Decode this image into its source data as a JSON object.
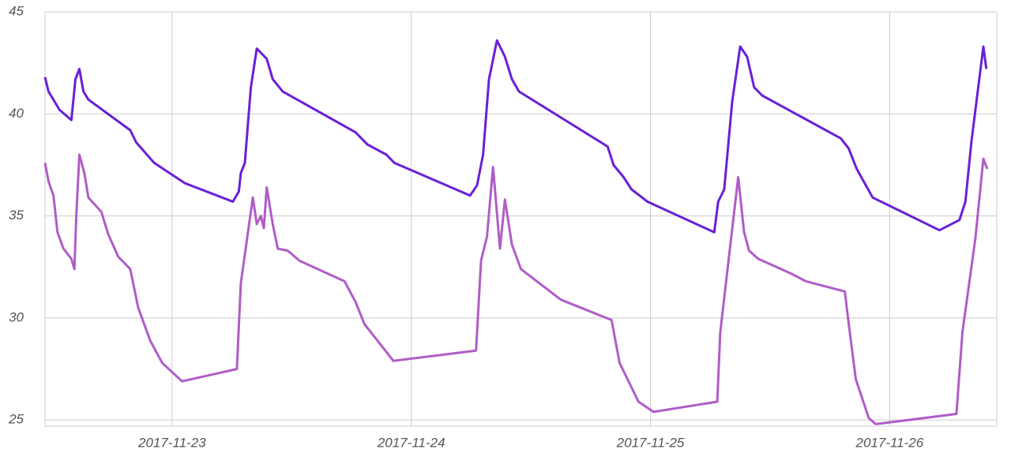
{
  "chart_data": {
    "type": "line",
    "xlim": [
      "2017-11-22 11:15",
      "2017-11-26 10:45"
    ],
    "xticks": [
      "2017-11-23",
      "2017-11-24",
      "2017-11-25",
      "2017-11-26"
    ],
    "ylim": [
      24.7,
      45
    ],
    "yticks": [
      25,
      30,
      35,
      40,
      45
    ],
    "grid": true,
    "series": [
      {
        "color": "#6a1fd8",
        "x": [
          "2017-11-22 11:15",
          "2017-11-22 11:36",
          "2017-11-22 12:42",
          "2017-11-22 13:54",
          "2017-11-22 14:18",
          "2017-11-22 14:42",
          "2017-11-22 15:06",
          "2017-11-22 15:36",
          "2017-11-22 19:48",
          "2017-11-22 20:24",
          "2017-11-22 22:12",
          "2017-11-23 01:18",
          "2017-11-23 06:06",
          "2017-11-23 06:42",
          "2017-11-23 06:54",
          "2017-11-23 07:18",
          "2017-11-23 07:54",
          "2017-11-23 08:30",
          "2017-11-23 09:30",
          "2017-11-23 10:06",
          "2017-11-23 11:06",
          "2017-11-23 18:24",
          "2017-11-23 19:36",
          "2017-11-23 21:30",
          "2017-11-23 22:18",
          "2017-11-24 05:54",
          "2017-11-24 06:36",
          "2017-11-24 07:12",
          "2017-11-24 07:48",
          "2017-11-24 08:36",
          "2017-11-24 09:24",
          "2017-11-24 10:06",
          "2017-11-24 10:48",
          "2017-11-24 19:42",
          "2017-11-24 20:18",
          "2017-11-24 21:18",
          "2017-11-24 22:06",
          "2017-11-24 23:42",
          "2017-11-25 06:24",
          "2017-11-25 06:48",
          "2017-11-25 07:24",
          "2017-11-25 08:12",
          "2017-11-25 09:00",
          "2017-11-25 09:42",
          "2017-11-25 10:24",
          "2017-11-25 11:12",
          "2017-11-25 19:06",
          "2017-11-25 19:54",
          "2017-11-25 20:42",
          "2017-11-25 22:18",
          "2017-11-26 05:00",
          "2017-11-26 07:00",
          "2017-11-26 07:36",
          "2017-11-26 08:12",
          "2017-11-26 09:24",
          "2017-11-26 09:42"
        ],
        "values": [
          41.8,
          41.1,
          40.2,
          39.7,
          41.7,
          42.2,
          41.1,
          40.7,
          39.2,
          38.6,
          37.6,
          36.6,
          35.7,
          36.2,
          37.1,
          37.6,
          41.3,
          43.2,
          42.7,
          41.7,
          41.1,
          39.1,
          38.5,
          38.0,
          37.6,
          36.0,
          36.5,
          38.0,
          41.7,
          43.6,
          42.8,
          41.7,
          41.1,
          38.4,
          37.5,
          36.9,
          36.3,
          35.7,
          34.2,
          35.7,
          36.3,
          40.6,
          43.3,
          42.8,
          41.3,
          40.9,
          38.8,
          38.3,
          37.3,
          35.9,
          34.3,
          34.8,
          35.7,
          38.6,
          43.3,
          42.2
        ]
      },
      {
        "color": "#b05cc8",
        "x": [
          "2017-11-22 11:15",
          "2017-11-22 11:36",
          "2017-11-22 12:06",
          "2017-11-22 12:30",
          "2017-11-22 13:06",
          "2017-11-22 13:54",
          "2017-11-22 14:12",
          "2017-11-22 14:24",
          "2017-11-22 14:42",
          "2017-11-22 15:12",
          "2017-11-22 15:36",
          "2017-11-22 16:54",
          "2017-11-22 17:36",
          "2017-11-22 18:36",
          "2017-11-22 19:48",
          "2017-11-22 20:36",
          "2017-11-22 21:48",
          "2017-11-22 23:00",
          "2017-11-23 01:00",
          "2017-11-23 06:30",
          "2017-11-23 06:54",
          "2017-11-23 08:06",
          "2017-11-23 08:30",
          "2017-11-23 08:54",
          "2017-11-23 09:12",
          "2017-11-23 09:30",
          "2017-11-23 10:06",
          "2017-11-23 10:36",
          "2017-11-23 11:36",
          "2017-11-23 12:48",
          "2017-11-23 17:18",
          "2017-11-23 18:24",
          "2017-11-23 19:18",
          "2017-11-23 20:36",
          "2017-11-23 22:12",
          "2017-11-24 06:30",
          "2017-11-24 07:00",
          "2017-11-24 07:36",
          "2017-11-24 08:12",
          "2017-11-24 08:54",
          "2017-11-24 09:24",
          "2017-11-24 10:06",
          "2017-11-24 11:00",
          "2017-11-24 15:00",
          "2017-11-24 20:06",
          "2017-11-24 20:54",
          "2017-11-24 22:48",
          "2017-11-25 00:18",
          "2017-11-25 06:42",
          "2017-11-25 07:00",
          "2017-11-25 08:48",
          "2017-11-25 09:24",
          "2017-11-25 09:54",
          "2017-11-25 10:48",
          "2017-11-25 14:00",
          "2017-11-25 15:36",
          "2017-11-25 19:30",
          "2017-11-25 19:54",
          "2017-11-25 20:36",
          "2017-11-25 21:54",
          "2017-11-25 22:36",
          "2017-11-26 06:42",
          "2017-11-26 07:18",
          "2017-11-26 08:36",
          "2017-11-26 09:24",
          "2017-11-26 09:48"
        ],
        "values": [
          37.6,
          36.7,
          36.0,
          34.2,
          33.4,
          32.9,
          32.4,
          35.1,
          38.0,
          37.1,
          35.9,
          35.2,
          34.1,
          33.0,
          32.4,
          30.5,
          28.9,
          27.8,
          26.9,
          27.5,
          31.7,
          35.9,
          34.6,
          35.0,
          34.4,
          36.4,
          34.6,
          33.4,
          33.3,
          32.8,
          31.8,
          30.8,
          29.7,
          28.9,
          27.9,
          28.4,
          32.8,
          34.0,
          37.4,
          33.4,
          35.8,
          33.6,
          32.4,
          30.9,
          29.9,
          27.8,
          25.9,
          25.4,
          25.9,
          29.3,
          36.9,
          34.2,
          33.3,
          32.9,
          32.2,
          31.8,
          31.3,
          29.7,
          27.0,
          25.1,
          24.8,
          25.3,
          29.3,
          33.9,
          37.8,
          37.3
        ]
      }
    ]
  }
}
